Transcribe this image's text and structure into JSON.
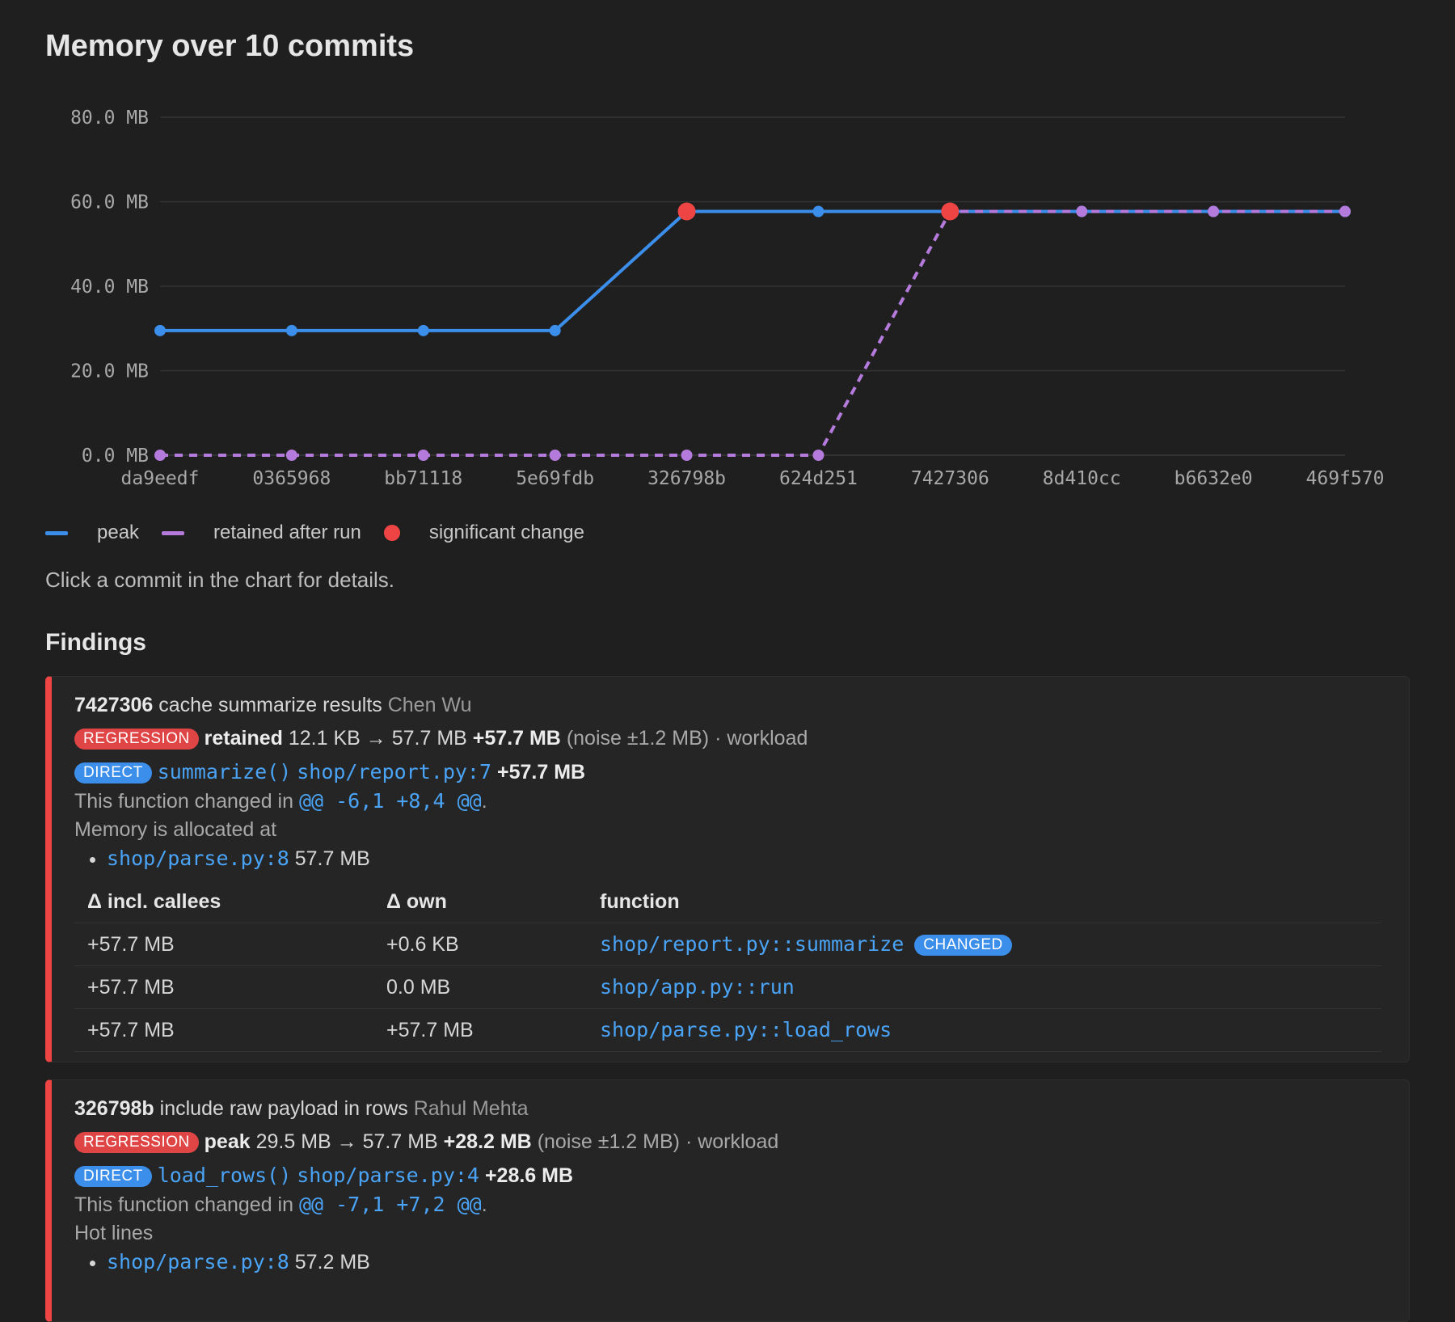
{
  "title": "Memory over 10 commits",
  "chart_data": {
    "type": "line",
    "categories": [
      "da9eedf",
      "0365968",
      "bb71118",
      "5e69fdb",
      "326798b",
      "624d251",
      "7427306",
      "8d410cc",
      "b6632e0",
      "469f570"
    ],
    "series": [
      {
        "name": "peak",
        "color": "#3b8eea",
        "dashed": false,
        "values": [
          29.5,
          29.5,
          29.5,
          29.5,
          57.7,
          57.7,
          57.7,
          57.7,
          57.7,
          57.7
        ]
      },
      {
        "name": "retained after run",
        "color": "#b57bdc",
        "dashed": true,
        "values": [
          0.0,
          0.0,
          0.0,
          0.0,
          0.0,
          0.0,
          57.7,
          57.7,
          57.7,
          57.7
        ]
      }
    ],
    "significant_changes": [
      {
        "series": "peak",
        "category": "326798b",
        "value": 57.7
      },
      {
        "series": "retained after run",
        "category": "7427306",
        "value": 57.7
      }
    ],
    "y_ticks": [
      "0.0 MB",
      "20.0 MB",
      "40.0 MB",
      "60.0 MB",
      "80.0 MB"
    ],
    "ylim": [
      0,
      80
    ],
    "grid": true,
    "legend_position": "bottom-left",
    "marker_color": "#ef4444"
  },
  "legend": {
    "peak": "peak",
    "retained": "retained after run",
    "significant": "significant change"
  },
  "hint": "Click a commit in the chart for details.",
  "findings_title": "Findings",
  "findings": [
    {
      "sha": "7427306",
      "message": "cache summarize results",
      "author": "Chen Wu",
      "badge": "REGRESSION",
      "metric": "retained",
      "change": "12.1 KB → 57.7 MB",
      "delta": "+57.7 MB",
      "noise": "(noise ±1.2 MB)",
      "scope": "· workload",
      "direct_badge": "DIRECT",
      "func": "summarize()",
      "loc": "shop/report.py:7",
      "func_delta": "+57.7 MB",
      "changed_prefix": "This function changed in",
      "hunk": "@@ -6,1 +8,4 @@",
      "alloc_label": "Memory is allocated at",
      "alloc_loc": "shop/parse.py:8",
      "alloc_size": "57.7 MB",
      "table_headers": [
        "Δ incl. callees",
        "Δ own",
        "function"
      ],
      "table_rows": [
        {
          "incl": "+57.7 MB",
          "own": "+0.6 KB",
          "fn": "shop/report.py::summarize",
          "tag": "CHANGED"
        },
        {
          "incl": "+57.7 MB",
          "own": "0.0 MB",
          "fn": "shop/app.py::run",
          "tag": ""
        },
        {
          "incl": "+57.7 MB",
          "own": "+57.7 MB",
          "fn": "shop/parse.py::load_rows",
          "tag": ""
        }
      ]
    },
    {
      "sha": "326798b",
      "message": "include raw payload in rows",
      "author": "Rahul Mehta",
      "badge": "REGRESSION",
      "metric": "peak",
      "change": "29.5 MB → 57.7 MB",
      "delta": "+28.2 MB",
      "noise": "(noise ±1.2 MB)",
      "scope": "· workload",
      "direct_badge": "DIRECT",
      "func": "load_rows()",
      "loc": "shop/parse.py:4",
      "func_delta": "+28.6 MB",
      "changed_prefix": "This function changed in",
      "hunk": "@@ -7,1 +7,2 @@",
      "hot_label": "Hot lines",
      "hot_loc": "shop/parse.py:8",
      "hot_size": "57.2 MB"
    }
  ]
}
